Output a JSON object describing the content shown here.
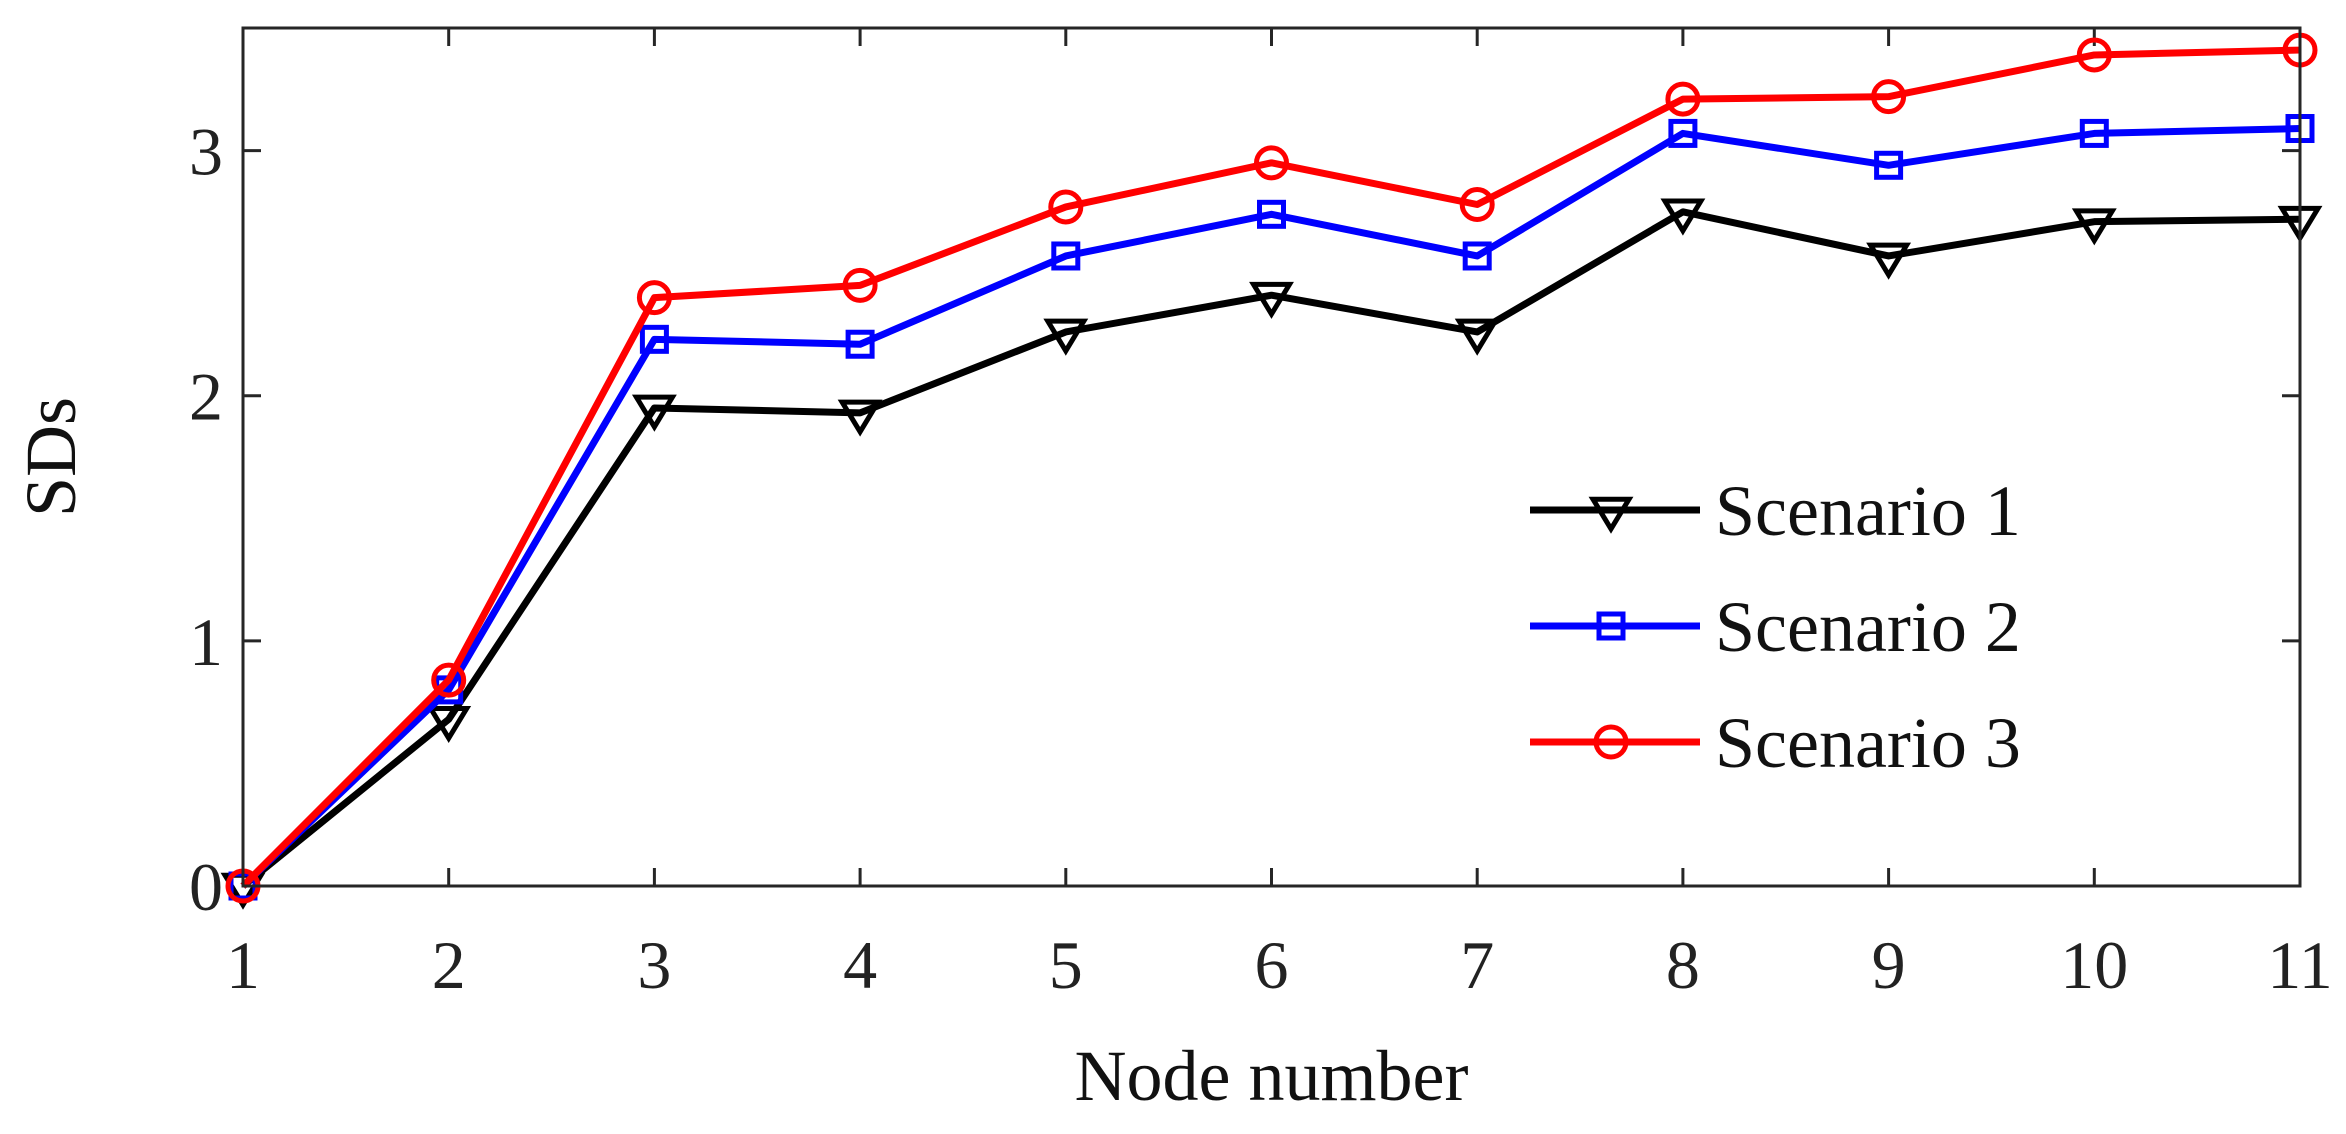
{
  "chart_data": {
    "type": "line",
    "title": "",
    "xlabel": "Node number",
    "ylabel": "SDs",
    "x": [
      1,
      2,
      3,
      4,
      5,
      6,
      7,
      8,
      9,
      10,
      11
    ],
    "xlim": [
      1,
      11
    ],
    "ylim": [
      0,
      3.5
    ],
    "xticks": [
      "1",
      "2",
      "3",
      "4",
      "5",
      "6",
      "7",
      "8",
      "9",
      "10",
      "11"
    ],
    "yticks": [
      "0",
      "1",
      "2",
      "3"
    ],
    "grid": false,
    "legend_position": "lower-right",
    "series": [
      {
        "name": "Scenario 1",
        "color": "#000000",
        "marker": "triangle-down",
        "values": [
          0.0,
          0.68,
          1.95,
          1.93,
          2.26,
          2.41,
          2.26,
          2.75,
          2.57,
          2.71,
          2.72
        ]
      },
      {
        "name": "Scenario 2",
        "color": "#0000ff",
        "marker": "square",
        "values": [
          0.0,
          0.8,
          2.23,
          2.21,
          2.57,
          2.74,
          2.57,
          3.07,
          2.94,
          3.07,
          3.09
        ]
      },
      {
        "name": "Scenario 3",
        "color": "#ff0000",
        "marker": "circle",
        "values": [
          0.0,
          0.84,
          2.4,
          2.45,
          2.77,
          2.95,
          2.78,
          3.21,
          3.22,
          3.39,
          3.41
        ]
      }
    ]
  }
}
